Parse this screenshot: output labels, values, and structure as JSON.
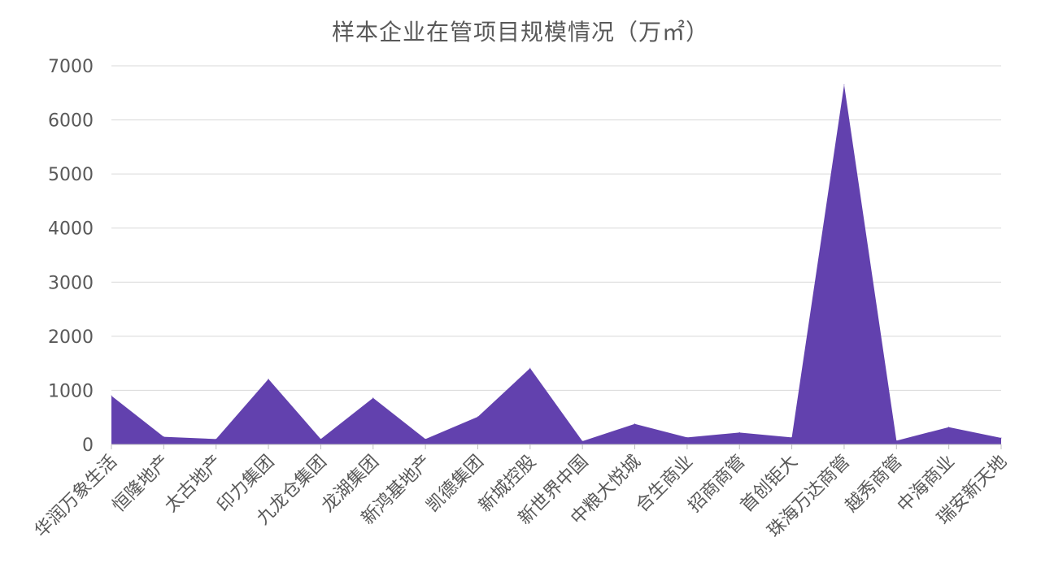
{
  "chart_data": {
    "type": "area",
    "title": "样本企业在管项目规模情况（万㎡）",
    "categories": [
      "华润万象生活",
      "恒隆地产",
      "太古地产",
      "印力集团",
      "九龙仓集团",
      "龙湖集团",
      "新鸿基地产",
      "凯德集团",
      "新城控股",
      "新世界中国",
      "中粮大悦城",
      "合生商业",
      "招商商管",
      "首创钜大",
      "珠海万达商管",
      "越秀商管",
      "中海商业",
      "瑞安新天地"
    ],
    "series": [
      {
        "values": [
          900,
          140,
          100,
          1210,
          100,
          860,
          100,
          510,
          1410,
          60,
          380,
          130,
          220,
          130,
          6650,
          70,
          320,
          120
        ]
      }
    ],
    "ylim": [
      0,
      7000
    ],
    "yticks": [
      0,
      1000,
      2000,
      3000,
      4000,
      5000,
      6000,
      7000
    ],
    "grid": true,
    "colors": {
      "area": "#6241ae",
      "grid": "#d9d9d9",
      "axis": "#bfbfbf"
    }
  }
}
